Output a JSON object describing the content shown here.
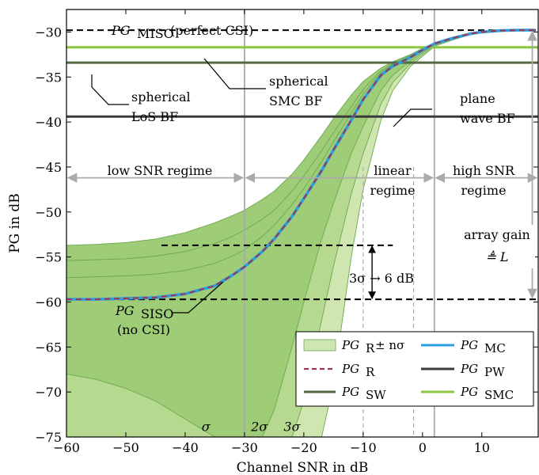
{
  "chart_data": {
    "type": "line",
    "xlabel": "Channel SNR in dB",
    "ylabel": "PG in dB",
    "xlim": [
      -60,
      19.5
    ],
    "ylim": [
      -75,
      -27.5
    ],
    "xticks": [
      -60,
      -50,
      -40,
      -30,
      -20,
      -10,
      0,
      10
    ],
    "yticks": [
      -30,
      -35,
      -40,
      -45,
      -50,
      -55,
      -60,
      -65,
      -70,
      -75
    ],
    "grid": false,
    "legend_position": "lower-right",
    "colors": {
      "band_fill": "#a6d07a",
      "band_edge": "#6aa84f",
      "pg_r": "#a0344f",
      "pg_mc": "#2a9fe0",
      "pg_sw": "#546b42",
      "pg_pw": "#3b3b3b",
      "pg_smc": "#8cc63f",
      "vline": "#aaaaaa",
      "arrow": "#aaaaaa"
    },
    "horizontal_lines": {
      "pg_miso": -29.8,
      "pg_smc": -31.7,
      "pg_sw": -33.4,
      "pg_pw": -39.4,
      "pg_siso": -59.7
    },
    "vertical_lines": {
      "solid": [
        -30,
        2
      ],
      "dashed": [
        -10,
        -1.5
      ]
    },
    "curve": {
      "x": [
        -60,
        -55,
        -50,
        -45,
        -40,
        -35,
        -32,
        -30,
        -27,
        -25,
        -22,
        -20,
        -17,
        -15,
        -12,
        -10,
        -7,
        -5,
        -2,
        0,
        2,
        5,
        8,
        10,
        13,
        16,
        19
      ],
      "y": [
        -59.7,
        -59.7,
        -59.6,
        -59.5,
        -59.1,
        -58.2,
        -57.0,
        -56.1,
        -54.4,
        -53.0,
        -50.5,
        -48.5,
        -45.4,
        -43.1,
        -39.8,
        -37.5,
        -34.8,
        -33.8,
        -32.8,
        -32.0,
        -31.3,
        -30.7,
        -30.2,
        -30.0,
        -29.85,
        -29.8,
        -29.8
      ]
    },
    "bands": [
      {
        "label": "σ",
        "upper": [
          -53.7,
          -53.6,
          -53.4,
          -53.0,
          -52.3,
          -51.2,
          -50.4,
          -49.8,
          -48.6,
          -47.7,
          -45.8,
          -44.2,
          -41.5,
          -39.6,
          -37.0,
          -35.5,
          -34.0,
          -33.3,
          -32.5,
          -31.8,
          -31.2,
          -30.6,
          -30.2,
          -30.0,
          -29.85,
          -29.8,
          -29.8
        ],
        "lower": [
          -68,
          -68.6,
          -69.6,
          -71.0,
          -73.0,
          -75,
          -75,
          -75,
          -75,
          -72.0,
          -65.0,
          -60.0,
          -53.0,
          -49.0,
          -43.5,
          -40.5,
          -36.5,
          -34.8,
          -33.2,
          -32.3,
          -31.4,
          -30.8,
          -30.3,
          -30.0,
          -29.85,
          -29.8,
          -29.8
        ]
      },
      {
        "label": "2σ",
        "upper": [
          -55.4,
          -55.3,
          -55.2,
          -54.9,
          -54.4,
          -53.5,
          -52.7,
          -52.0,
          -50.8,
          -49.8,
          -47.7,
          -46.0,
          -43.2,
          -41.2,
          -38.3,
          -36.4,
          -34.3,
          -33.5,
          -32.6,
          -31.9,
          -31.25,
          -30.65,
          -30.2,
          -30.0,
          -29.85,
          -29.8,
          -29.8
        ],
        "lower": [
          -75,
          -75,
          -75,
          -75,
          -75,
          -75,
          -75,
          -75,
          -75,
          -75,
          -75,
          -71.0,
          -62.0,
          -56.0,
          -48.0,
          -43.5,
          -38.0,
          -35.6,
          -33.5,
          -32.5,
          -31.5,
          -30.8,
          -30.3,
          -30.0,
          -29.85,
          -29.8,
          -29.8
        ]
      },
      {
        "label": "3σ",
        "upper": [
          -57.3,
          -57.2,
          -57.1,
          -56.9,
          -56.5,
          -55.7,
          -54.9,
          -54.2,
          -52.7,
          -51.5,
          -49.2,
          -47.4,
          -44.4,
          -42.2,
          -39.0,
          -36.9,
          -34.5,
          -33.6,
          -32.7,
          -31.95,
          -31.3,
          -30.7,
          -30.2,
          -30.0,
          -29.85,
          -29.8,
          -29.8
        ],
        "lower": [
          -75,
          -75,
          -75,
          -75,
          -75,
          -75,
          -75,
          -75,
          -75,
          -75,
          -75,
          -75,
          -75,
          -69.0,
          -55.0,
          -47.5,
          -39.8,
          -36.5,
          -33.8,
          -32.7,
          -31.6,
          -30.9,
          -30.3,
          -30.0,
          -29.85,
          -29.8,
          -29.8
        ]
      }
    ],
    "band_labels": [
      {
        "text": "σ",
        "x": -36.5,
        "y": -73.8
      },
      {
        "text": "2σ",
        "x": -27.5,
        "y": -73.8
      },
      {
        "text": "3σ",
        "x": -22,
        "y": -73.8
      }
    ],
    "annotations": {
      "pg_miso_label": "(perfect CSI)",
      "spherical_los_line1": "spherical",
      "spherical_los_line2": "LoS BF",
      "spherical_smc_line1": "spherical",
      "spherical_smc_line2": "SMC BF",
      "plane_wave_line1": "plane",
      "plane_wave_line2": "wave BF",
      "low_snr": "low SNR regime",
      "linear_line1": "linear",
      "linear_line2": "regime",
      "high_snr_line1": "high SNR",
      "high_snr_line2": "regime",
      "array_gain_line1": "array gain",
      "array_gain_line2": "≜ L",
      "three_sigma": "3σ → 6 dB",
      "pg_siso_label": "(no CSI)"
    },
    "legend": [
      {
        "key": "pg_r_band",
        "text": "± nσ",
        "kind": "band"
      },
      {
        "key": "pg_mc",
        "text": "",
        "kind": "line"
      },
      {
        "key": "pg_r",
        "text": "",
        "kind": "dashed"
      },
      {
        "key": "pg_pw",
        "text": "",
        "kind": "line"
      },
      {
        "key": "pg_sw",
        "text": "",
        "kind": "line"
      },
      {
        "key": "pg_smc",
        "text": "",
        "kind": "line"
      }
    ],
    "subscript_labels": {
      "pg": "PG",
      "miso": "MISO",
      "siso": "SISO",
      "r": "R",
      "mc": "MC",
      "pw": "PW",
      "sw": "SW",
      "smc": "SMC"
    }
  }
}
